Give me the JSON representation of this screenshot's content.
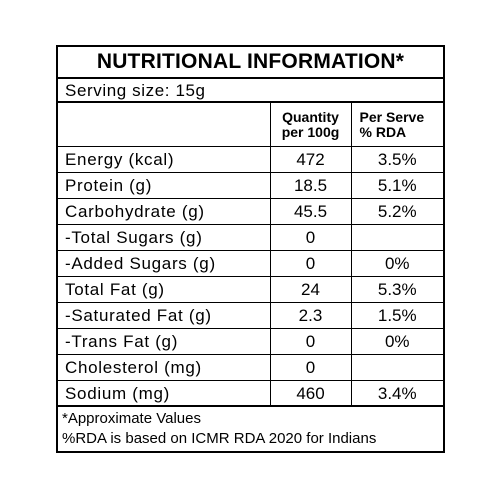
{
  "title": "NUTRITIONAL INFORMATION*",
  "serving": "Serving  size:  15g",
  "headers": {
    "nutrient": "",
    "quantity_line1": "Quantity",
    "quantity_line2": "per 100g",
    "rda_line1": "Per Serve",
    "rda_line2": "% RDA"
  },
  "rows": [
    {
      "label": "Energy  (kcal)",
      "qty": "472",
      "rda": "3.5%"
    },
    {
      "label": "Protein  (g)",
      "qty": "18.5",
      "rda": "5.1%"
    },
    {
      "label": "Carbohydrate  (g)",
      "qty": "45.5",
      "rda": "5.2%"
    },
    {
      "label": "-Total  Sugars  (g)",
      "qty": "0",
      "rda": ""
    },
    {
      "label": "-Added  Sugars  (g)",
      "qty": "0",
      "rda": "0%"
    },
    {
      "label": "Total  Fat  (g)",
      "qty": "24",
      "rda": "5.3%"
    },
    {
      "label": "-Saturated  Fat  (g)",
      "qty": "2.3",
      "rda": "1.5%"
    },
    {
      "label": "-Trans  Fat  (g)",
      "qty": "0",
      "rda": "0%"
    },
    {
      "label": "Cholesterol  (mg)",
      "qty": "0",
      "rda": ""
    },
    {
      "label": "Sodium  (mg)",
      "qty": "460",
      "rda": "3.4%"
    }
  ],
  "footer": {
    "line1": "*Approximate Values",
    "line2": "%RDA is based on ICMR RDA 2020 for Indians"
  }
}
